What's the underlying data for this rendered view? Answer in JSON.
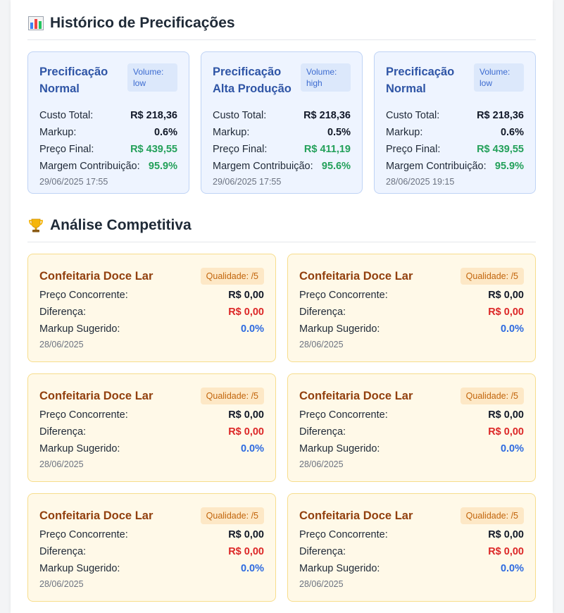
{
  "history": {
    "title": "Histórico de Precificações",
    "icon": "bar-chart-icon",
    "labels": {
      "custo": "Custo Total:",
      "markup": "Markup:",
      "preco": "Preço Final:",
      "margem": "Margem Contribuição:"
    },
    "cards": [
      {
        "name": "Precificação Normal",
        "volume": "Volume: low",
        "custo": "R$ 218,36",
        "markup": "0.6%",
        "preco": "R$ 439,55",
        "margem": "95.9%",
        "date": "29/06/2025 17:55"
      },
      {
        "name": "Precificação Alta Produção",
        "volume": "Volume: high",
        "custo": "R$ 218,36",
        "markup": "0.5%",
        "preco": "R$ 411,19",
        "margem": "95.6%",
        "date": "29/06/2025 17:55"
      },
      {
        "name": "Precificação Normal",
        "volume": "Volume: low",
        "custo": "R$ 218,36",
        "markup": "0.6%",
        "preco": "R$ 439,55",
        "margem": "95.9%",
        "date": "28/06/2025 19:15"
      }
    ]
  },
  "competitive": {
    "title": "Análise Competitiva",
    "icon": "trophy-icon",
    "labels": {
      "preco": "Preço Concorrente:",
      "diferenca": "Diferença:",
      "markup": "Markup Sugerido:"
    },
    "cards": [
      {
        "name": "Confeitaria Doce Lar",
        "quality": "Qualidade: /5",
        "preco": "R$ 0,00",
        "diferenca": "R$ 0,00",
        "markup": "0.0%",
        "date": "28/06/2025"
      },
      {
        "name": "Confeitaria Doce Lar",
        "quality": "Qualidade: /5",
        "preco": "R$ 0,00",
        "diferenca": "R$ 0,00",
        "markup": "0.0%",
        "date": "28/06/2025"
      },
      {
        "name": "Confeitaria Doce Lar",
        "quality": "Qualidade: /5",
        "preco": "R$ 0,00",
        "diferenca": "R$ 0,00",
        "markup": "0.0%",
        "date": "28/06/2025"
      },
      {
        "name": "Confeitaria Doce Lar",
        "quality": "Qualidade: /5",
        "preco": "R$ 0,00",
        "diferenca": "R$ 0,00",
        "markup": "0.0%",
        "date": "28/06/2025"
      },
      {
        "name": "Confeitaria Doce Lar",
        "quality": "Qualidade: /5",
        "preco": "R$ 0,00",
        "diferenca": "R$ 0,00",
        "markup": "0.0%",
        "date": "28/06/2025"
      },
      {
        "name": "Confeitaria Doce Lar",
        "quality": "Qualidade: /5",
        "preco": "R$ 0,00",
        "diferenca": "R$ 0,00",
        "markup": "0.0%",
        "date": "28/06/2025"
      }
    ]
  },
  "colors": {
    "history_card_bg": "#eef4ff",
    "history_title": "#2f55a6",
    "positive": "#23a05a",
    "comp_card_bg": "#fff9e8",
    "comp_title": "#92400e",
    "negative": "#dc2626",
    "accent_blue": "#2d6ae0"
  }
}
